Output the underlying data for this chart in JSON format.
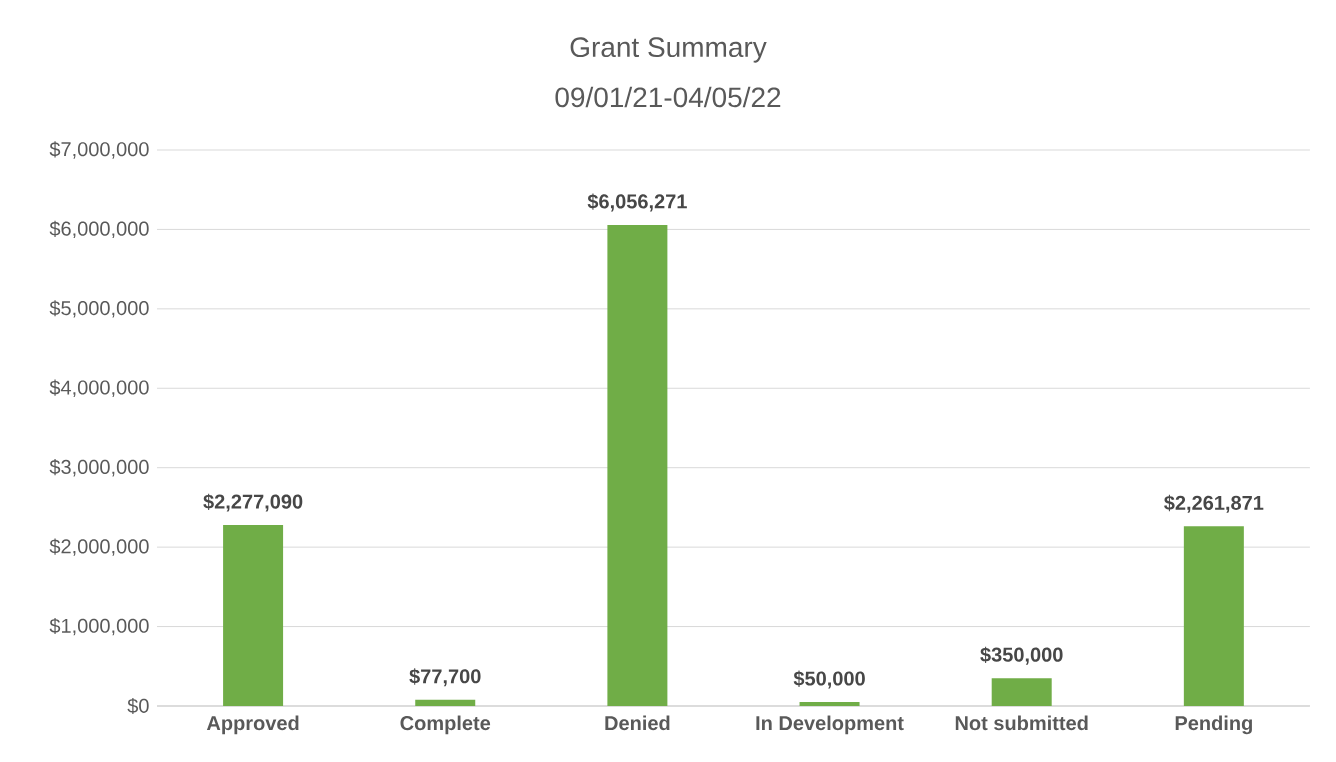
{
  "chart_data": {
    "type": "bar",
    "title": "Grant Summary",
    "subtitle": "09/01/21-04/05/22",
    "categories": [
      "Approved",
      "Complete",
      "Denied",
      "In Development",
      "Not submitted",
      "Pending"
    ],
    "values": [
      2277090,
      77700,
      6056271,
      50000,
      350000,
      2261871
    ],
    "value_labels": [
      "$2,277,090",
      "$77,700",
      "$6,056,271",
      "$50,000",
      "$350,000",
      "$2,261,871"
    ],
    "color": "#70ad47",
    "ylim": [
      0,
      7000000
    ],
    "yticks": [
      {
        "value": 0,
        "label": "$0"
      },
      {
        "value": 1000000,
        "label": "$1,000,000"
      },
      {
        "value": 2000000,
        "label": "$2,000,000"
      },
      {
        "value": 3000000,
        "label": "$3,000,000"
      },
      {
        "value": 4000000,
        "label": "$4,000,000"
      },
      {
        "value": 5000000,
        "label": "$5,000,000"
      },
      {
        "value": 6000000,
        "label": "$6,000,000"
      },
      {
        "value": 7000000,
        "label": "$7,000,000"
      }
    ],
    "grid": "y"
  }
}
